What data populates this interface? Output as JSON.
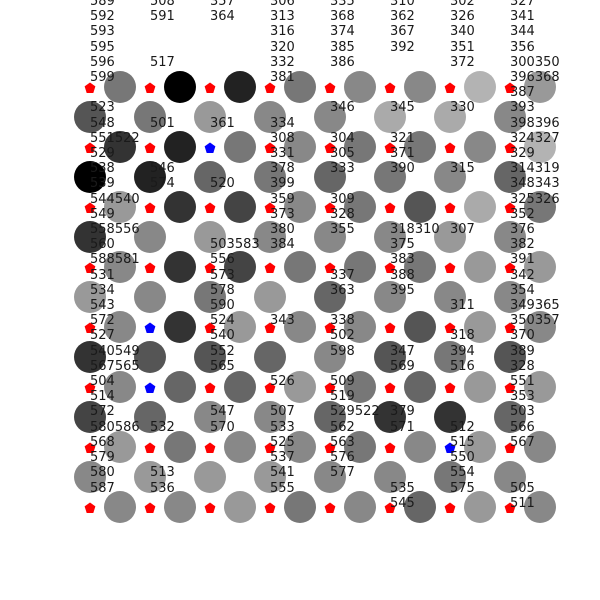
{
  "colors": {
    "background": "#ffffff",
    "cell_levels": {
      "0": "#000000",
      "1": "#222222",
      "2": "#333333",
      "3": "#444444",
      "4": "#555555",
      "5": "#666666",
      "6": "#777777",
      "7": "#888888",
      "8": "#999999",
      "9": "#aaaaaa",
      "10": "#b3b3b3"
    },
    "marker_red": "#ff0000",
    "marker_blue": "#0000ff",
    "number_text": "#1a1a1a"
  },
  "board": {
    "odd_rows": [
      [
        6,
        0,
        1,
        6,
        7,
        7,
        10,
        8
      ],
      [
        2,
        1,
        6,
        7,
        6,
        6,
        7,
        10
      ],
      [
        8,
        2,
        3,
        7,
        6,
        4,
        9,
        6
      ],
      [
        7,
        2,
        3,
        6,
        6,
        6,
        8,
        8
      ],
      [
        7,
        2,
        8,
        7,
        7,
        4,
        8,
        7
      ],
      [
        7,
        5,
        5,
        8,
        6,
        5,
        8,
        8
      ],
      [
        8,
        6,
        7,
        7,
        6,
        7,
        8,
        7
      ],
      [
        7,
        7,
        8,
        6,
        7,
        5,
        8,
        7
      ]
    ],
    "even_rows": [
      [
        4,
        6,
        8,
        7,
        7,
        9,
        9,
        7
      ],
      [
        0,
        1,
        5,
        6,
        5,
        6,
        7,
        5
      ],
      [
        2,
        7,
        8,
        7,
        7,
        7,
        8,
        7
      ],
      [
        8,
        7,
        6,
        8,
        5,
        7,
        7,
        7
      ],
      [
        2,
        4,
        4,
        5,
        7,
        4,
        6,
        4
      ],
      [
        3,
        5,
        7,
        7,
        5,
        2,
        2,
        5
      ],
      [
        7,
        8,
        8,
        8,
        7,
        7,
        6,
        7
      ]
    ],
    "markers": [
      [
        "red",
        "red",
        "red",
        "red",
        "red",
        "red",
        "red",
        "red"
      ],
      [
        "red",
        "red",
        "blue",
        "red",
        "red",
        "red",
        "red",
        "red"
      ],
      [
        "red",
        "red",
        "red",
        "red",
        "red",
        "red",
        "red",
        "red"
      ],
      [
        "red",
        "red",
        "red",
        "red",
        "red",
        "red",
        "red",
        "red"
      ],
      [
        "red",
        "blue",
        "red",
        "red",
        "red",
        "red",
        "red",
        "red"
      ],
      [
        "red",
        "blue",
        "red",
        "red",
        "red",
        "red",
        "red",
        "red"
      ],
      [
        "red",
        "red",
        "red",
        "red",
        "red",
        "red",
        "blue",
        "red"
      ],
      [
        "red",
        "red",
        "red",
        "red",
        "red",
        "red",
        "red",
        "red"
      ]
    ]
  },
  "numbers": [
    {
      "col": 0,
      "lines": [
        "589",
        "592",
        "593",
        "595",
        "596",
        "599",
        "",
        "523",
        "548",
        "551522",
        "529",
        "538",
        "539",
        "544540",
        "549",
        "558556",
        "560",
        "588581",
        "531",
        "534",
        "543",
        "572",
        "527",
        "540549",
        "567565",
        "504",
        "514",
        "572",
        "580586",
        "568",
        "579",
        "580",
        "587"
      ]
    },
    {
      "col": 1,
      "lines": [
        "508",
        "591",
        "",
        "",
        "517",
        "",
        "",
        "",
        "501",
        "",
        "",
        "546",
        "574",
        "",
        "",
        "",
        "",
        "",
        "",
        "",
        "",
        "",
        "",
        "",
        "",
        "",
        "",
        "",
        "532",
        "",
        "",
        "513",
        "536"
      ]
    },
    {
      "col": 2,
      "lines": [
        "357",
        "364",
        "",
        "",
        "",
        "",
        "",
        "",
        "361",
        "",
        "",
        "",
        "520",
        "",
        "",
        "",
        "503583",
        "556",
        "573",
        "578",
        "590",
        "524",
        "540",
        "552",
        "565",
        "",
        "",
        "547",
        "570"
      ]
    },
    {
      "col": 3,
      "lines": [
        "306",
        "313",
        "316",
        "320",
        "332",
        "381",
        "",
        "",
        "334",
        "308",
        "331",
        "378",
        "399",
        "359",
        "373",
        "380",
        "384",
        "",
        "",
        "",
        "",
        "343",
        "",
        "",
        "",
        "526",
        "",
        "507",
        "533",
        "525",
        "537",
        "541",
        "555"
      ]
    },
    {
      "col": 4,
      "lines": [
        "335",
        "368",
        "374",
        "385",
        "386",
        "",
        "",
        "346",
        "",
        "304",
        "305",
        "333",
        "",
        "309",
        "328",
        "355",
        "",
        "",
        "337",
        "363",
        "",
        "338",
        "502",
        "598",
        "",
        "509",
        "519",
        "529522",
        "562",
        "563",
        "576",
        "577"
      ]
    },
    {
      "col": 5,
      "lines": [
        "310",
        "362",
        "367",
        "392",
        "",
        "",
        "",
        "345",
        "",
        "321",
        "371",
        "390",
        "",
        "",
        "",
        "318310",
        "375",
        "383",
        "388",
        "395",
        "",
        "",
        "",
        "347",
        "569",
        "",
        "",
        "379",
        "571",
        "",
        "",
        "",
        "535",
        "545"
      ]
    },
    {
      "col": 6,
      "lines": [
        "302",
        "326",
        "340",
        "351",
        "372",
        "",
        "",
        "330",
        "",
        "",
        "",
        "315",
        "",
        "",
        "",
        "307",
        "",
        "",
        "",
        "",
        "311",
        "",
        "318",
        "394",
        "516",
        "",
        "",
        "",
        "512",
        "515",
        "550",
        "554",
        "575"
      ]
    },
    {
      "col": 7,
      "lines": [
        "327",
        "341",
        "344",
        "356",
        "300350",
        "396368",
        "387",
        "393",
        "398396",
        "324327",
        "329",
        "314319",
        "348343",
        "325326",
        "352",
        "376",
        "382",
        "391",
        "342",
        "354",
        "349365",
        "350357",
        "370",
        "389",
        "328",
        "551",
        "353",
        "503",
        "566",
        "567",
        "",
        "",
        "505",
        "511"
      ]
    }
  ]
}
